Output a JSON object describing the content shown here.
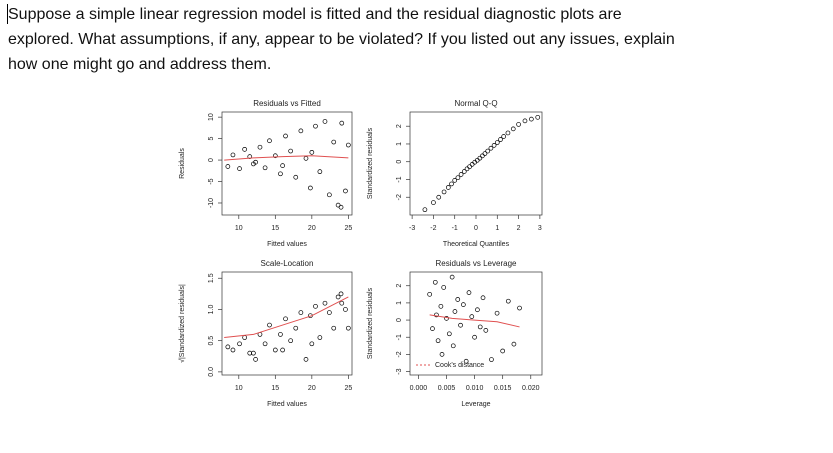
{
  "question": {
    "lines": [
      "Suppose a simple linear regression model is fitted and the residual diagnostic plots are",
      "explored.  What assumptions, if any, appear to be violated?  If you listed out any issues, explain",
      "how one might go and address them."
    ]
  },
  "chart_data": [
    {
      "type": "scatter",
      "title": "Residuals vs Fitted",
      "xlabel": "Fitted values",
      "ylabel": "Residuals",
      "x": [
        8.5,
        9.2,
        10.1,
        10.8,
        11.5,
        12.3,
        12.9,
        13.6,
        14.2,
        15.0,
        15.7,
        16.4,
        17.1,
        17.8,
        18.5,
        19.2,
        19.8,
        20.5,
        21.1,
        21.8,
        22.4,
        23.0,
        23.6,
        24.1,
        24.6,
        25.0,
        12.0,
        16.0,
        20.0,
        24.0
      ],
      "values": [
        -1.5,
        1.2,
        -2.0,
        2.5,
        0.8,
        -0.5,
        3.0,
        -1.8,
        4.5,
        1.0,
        -3.2,
        5.6,
        2.1,
        -4.0,
        6.8,
        0.4,
        -6.5,
        7.9,
        -2.7,
        9.0,
        -8.1,
        4.2,
        -10.5,
        8.6,
        -7.2,
        3.5,
        -0.9,
        -1.3,
        1.8,
        -11.0
      ],
      "color": "#000000",
      "trend": {
        "x": [
          8,
          12,
          16,
          20,
          25
        ],
        "values": [
          0,
          0.5,
          0.8,
          1,
          0.5
        ],
        "color": "#e05050"
      },
      "xlim": [
        7.7,
        25.5
      ],
      "ylim": [
        -12.8,
        11.2
      ],
      "xticks": [
        10,
        15,
        20,
        25
      ],
      "yticks": [
        -10,
        -5,
        0,
        5,
        10
      ]
    },
    {
      "type": "scatter",
      "title": "Normal Q-Q",
      "xlabel": "Theoretical Quantiles",
      "ylabel": "Standardized residuals",
      "x": [
        -2.4,
        -2.0,
        -1.75,
        -1.5,
        -1.3,
        -1.15,
        -1.0,
        -0.85,
        -0.7,
        -0.55,
        -0.42,
        -0.3,
        -0.18,
        -0.06,
        0.06,
        0.18,
        0.3,
        0.42,
        0.55,
        0.7,
        0.85,
        1.0,
        1.15,
        1.3,
        1.5,
        1.75,
        2.0,
        2.3,
        2.6,
        2.9
      ],
      "values": [
        -2.7,
        -2.3,
        -2.0,
        -1.7,
        -1.45,
        -1.25,
        -1.05,
        -0.9,
        -0.72,
        -0.55,
        -0.4,
        -0.28,
        -0.15,
        -0.03,
        0.08,
        0.2,
        0.33,
        0.46,
        0.6,
        0.76,
        0.92,
        1.08,
        1.25,
        1.42,
        1.62,
        1.85,
        2.1,
        2.3,
        2.4,
        2.5
      ],
      "color": "#000000",
      "xlim": [
        -3.1,
        3.1
      ],
      "ylim": [
        -3.0,
        2.8
      ],
      "xticks": [
        -3,
        -2,
        -1,
        0,
        1,
        2,
        3
      ],
      "yticks": [
        -2,
        -1,
        0,
        1,
        2
      ]
    },
    {
      "type": "scatter",
      "title": "Scale-Location",
      "xlabel": "Fitted values",
      "ylabel": "√|Standardized residuals|",
      "x": [
        8.5,
        9.2,
        10.1,
        10.8,
        11.5,
        12.3,
        12.9,
        13.6,
        14.2,
        15.0,
        15.7,
        16.4,
        17.1,
        17.8,
        18.5,
        19.2,
        19.8,
        20.5,
        21.1,
        21.8,
        22.4,
        23.0,
        23.6,
        24.1,
        24.6,
        25.0,
        12.0,
        16.0,
        20.0,
        24.0
      ],
      "values": [
        0.4,
        0.35,
        0.45,
        0.55,
        0.3,
        0.2,
        0.6,
        0.45,
        0.75,
        0.35,
        0.6,
        0.85,
        0.5,
        0.7,
        0.95,
        0.2,
        0.9,
        1.05,
        0.55,
        1.1,
        0.95,
        0.7,
        1.2,
        1.1,
        1.0,
        0.7,
        0.3,
        0.35,
        0.45,
        1.25
      ],
      "color": "#000000",
      "trend": {
        "x": [
          8,
          12,
          16,
          20,
          25
        ],
        "values": [
          0.55,
          0.6,
          0.75,
          0.9,
          1.2
        ],
        "color": "#e05050"
      },
      "xlim": [
        7.7,
        25.5
      ],
      "ylim": [
        -0.05,
        1.6
      ],
      "xticks": [
        10,
        15,
        20,
        25
      ],
      "yticks": [
        {
          "value": 0,
          "label": "0.0"
        },
        0.5,
        {
          "value": 1,
          "label": "1.0"
        },
        1.5
      ]
    },
    {
      "type": "scatter",
      "title": "Residuals vs Leverage",
      "xlabel": "Leverage",
      "ylabel": "Standardized residuals",
      "legend_label": "Cook's distance",
      "x": [
        0.002,
        0.0025,
        0.003,
        0.0032,
        0.0035,
        0.004,
        0.0042,
        0.0045,
        0.005,
        0.0055,
        0.006,
        0.0062,
        0.0065,
        0.007,
        0.0075,
        0.008,
        0.0085,
        0.009,
        0.0095,
        0.01,
        0.0105,
        0.011,
        0.0115,
        0.012,
        0.013,
        0.014,
        0.015,
        0.016,
        0.017,
        0.018
      ],
      "values": [
        1.5,
        -0.5,
        2.2,
        0.3,
        -1.2,
        0.8,
        -2.0,
        1.9,
        0.1,
        -0.8,
        2.5,
        -1.5,
        0.5,
        1.2,
        -0.3,
        0.9,
        -2.4,
        1.6,
        0.2,
        -1.0,
        0.6,
        -0.4,
        1.3,
        -0.6,
        -2.3,
        0.4,
        -1.8,
        1.1,
        -1.4,
        0.7
      ],
      "color": "#000000",
      "trend": {
        "x": [
          0.002,
          0.006,
          0.01,
          0.014,
          0.018
        ],
        "values": [
          0.3,
          0.1,
          0,
          -0.1,
          -0.4
        ],
        "color": "#e05050"
      },
      "xlim": [
        -0.0015,
        0.022
      ],
      "ylim": [
        -3.2,
        2.8
      ],
      "xticks": [
        {
          "value": 0,
          "label": "0.000"
        },
        0.005,
        {
          "value": 0.01,
          "label": "0.010"
        },
        0.015,
        {
          "value": 0.02,
          "label": "0.020"
        }
      ],
      "yticks": [
        -3,
        -2,
        -1,
        0,
        1,
        2
      ]
    }
  ]
}
